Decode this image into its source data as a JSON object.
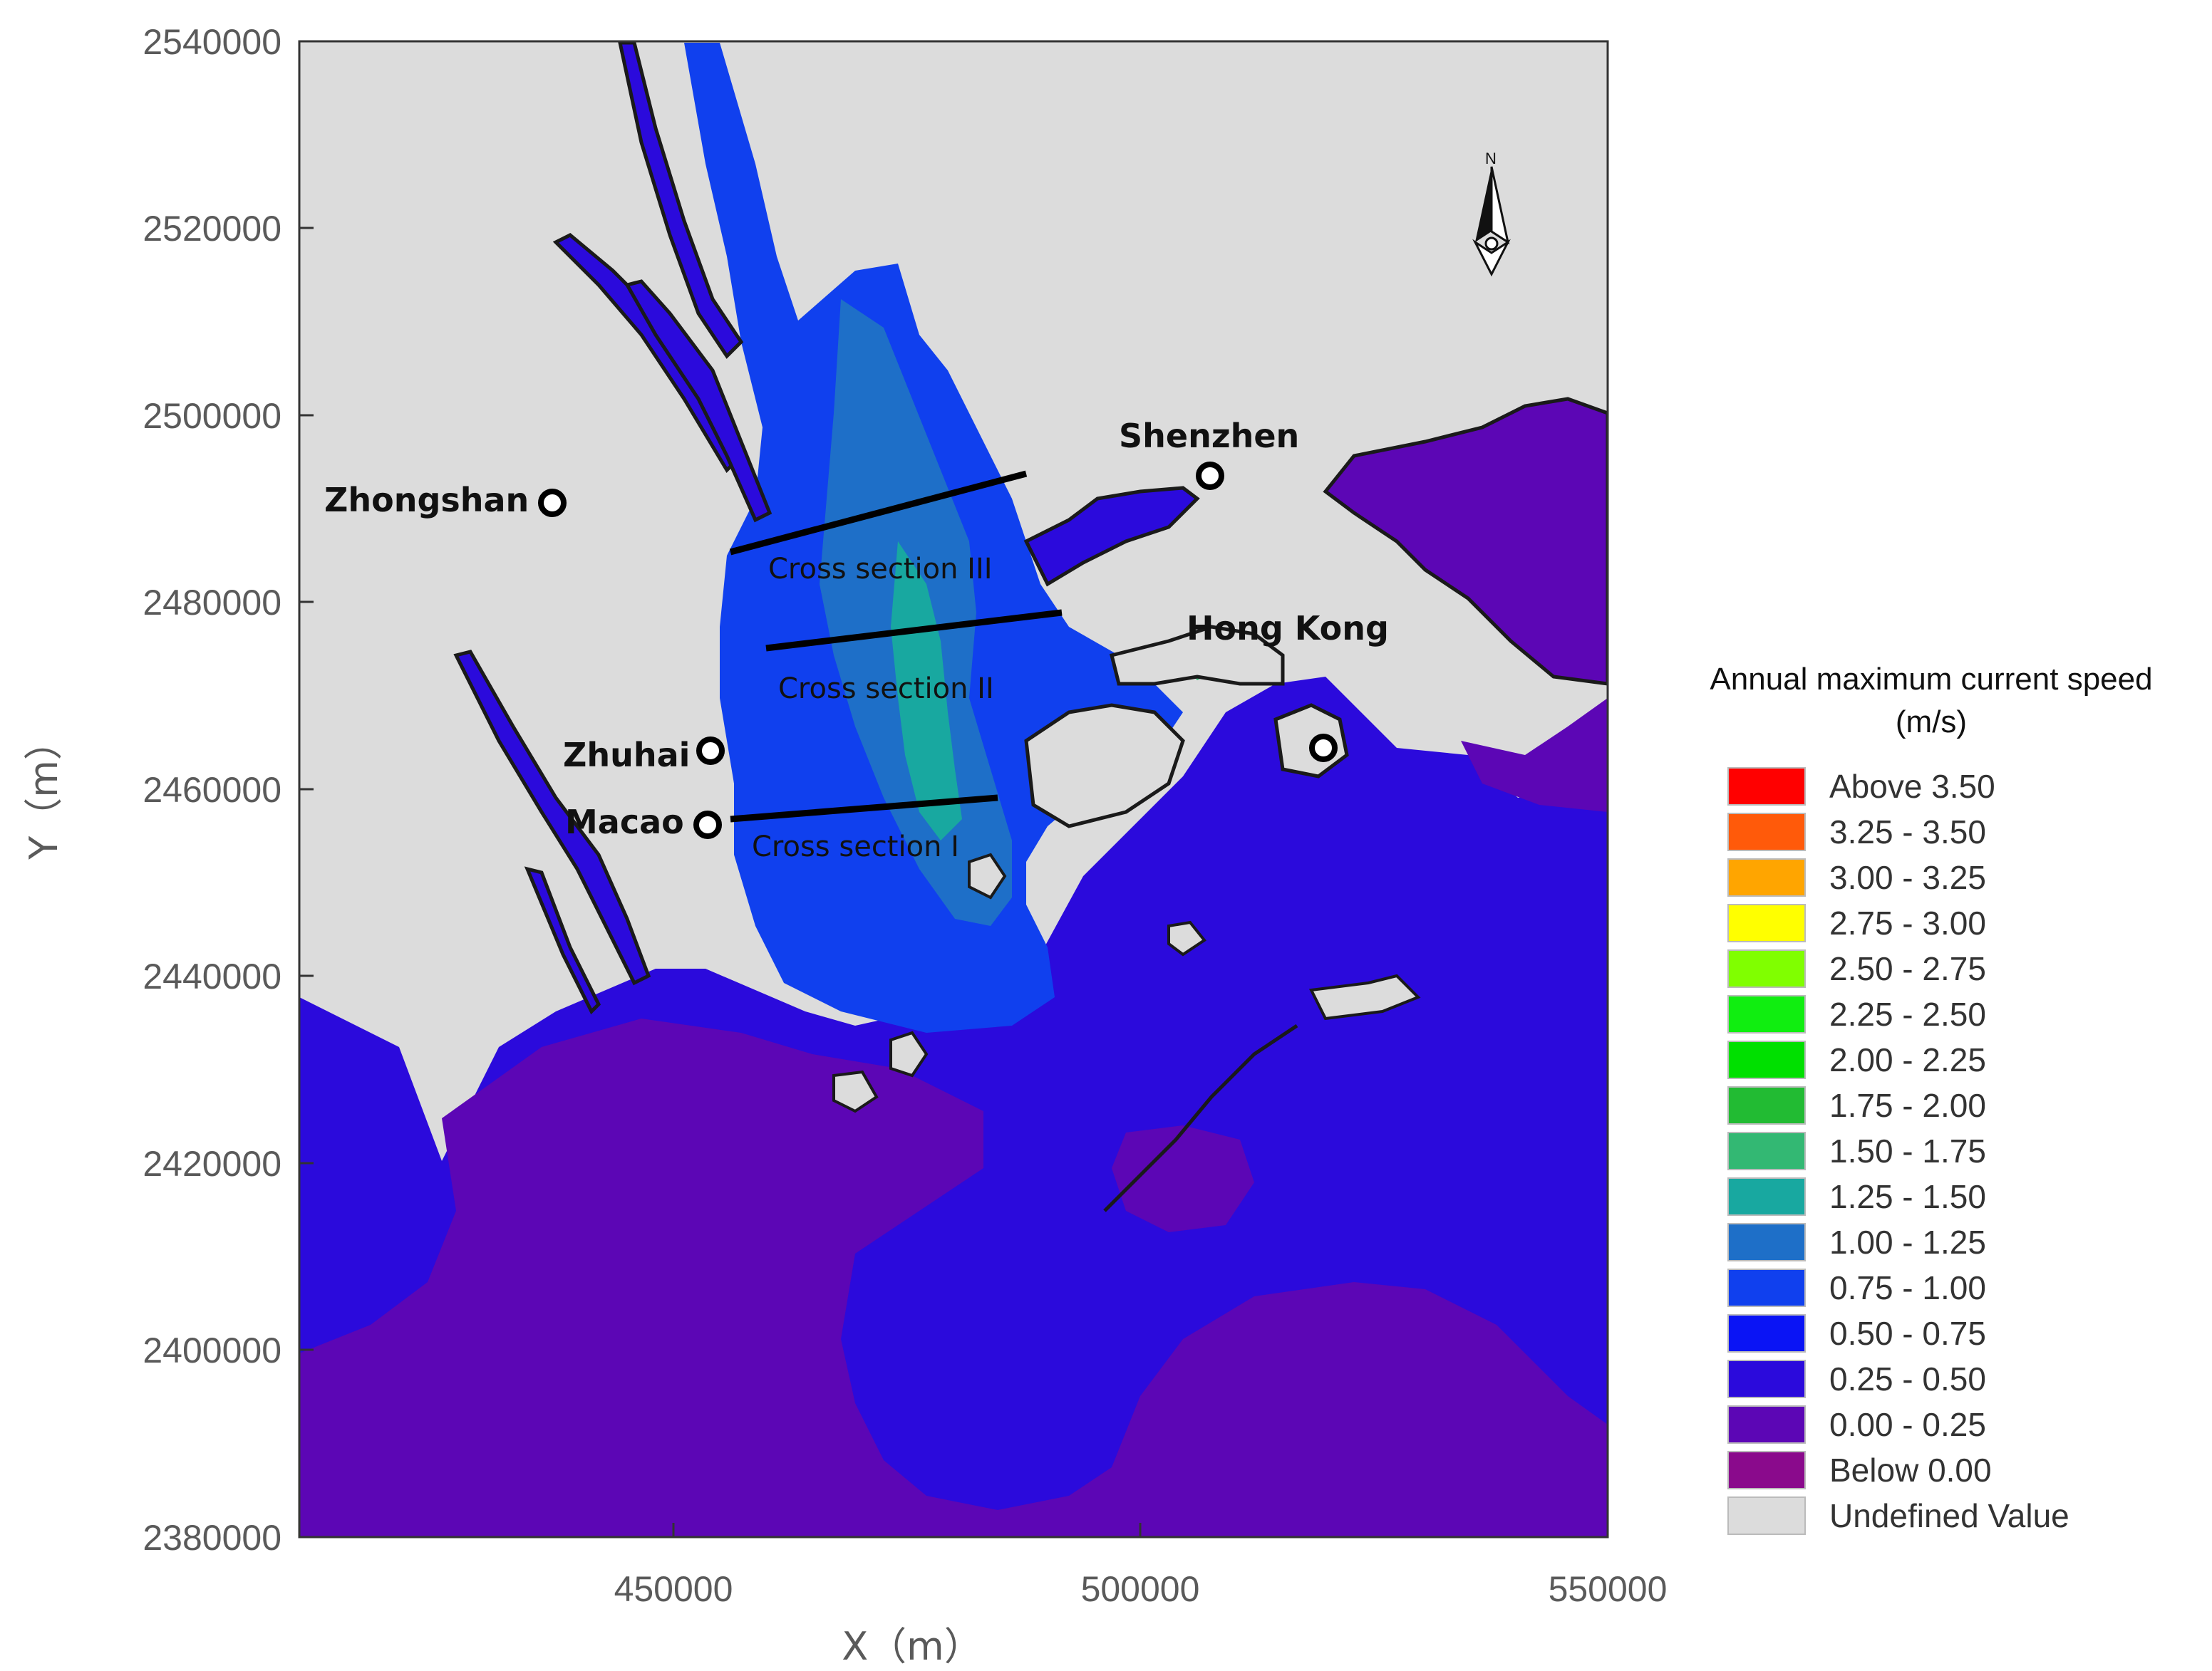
{
  "axes": {
    "x_title": "X（m）",
    "y_title": "Y（m）",
    "x_ticks": [
      "450000",
      "500000",
      "550000"
    ],
    "y_ticks": [
      "2540000",
      "2520000",
      "2500000",
      "2480000",
      "2460000",
      "2440000",
      "2420000",
      "2400000",
      "2380000"
    ]
  },
  "north_arrow": {
    "label": "N",
    "icon": "north-arrow-icon"
  },
  "cities": [
    {
      "name": "Shenzhen"
    },
    {
      "name": "Zhongshan"
    },
    {
      "name": "Hong Kong"
    },
    {
      "name": "Zhuhai"
    },
    {
      "name": "Macao"
    }
  ],
  "cross_sections": [
    {
      "label": "Cross section III"
    },
    {
      "label": "Cross section II"
    },
    {
      "label": "Cross section I"
    }
  ],
  "legend": {
    "title_line1": "Annual maximum current speed",
    "title_line2": "(m/s)",
    "items": [
      {
        "label": "Above 3.50",
        "color": "#ff0000"
      },
      {
        "label": "3.25 - 3.50",
        "color": "#ff5a0a"
      },
      {
        "label": "3.00 - 3.25",
        "color": "#ffa500"
      },
      {
        "label": "2.75 - 3.00",
        "color": "#ffff00"
      },
      {
        "label": "2.50 - 2.75",
        "color": "#80ff00"
      },
      {
        "label": "2.25 - 2.50",
        "color": "#10ee10"
      },
      {
        "label": "2.00 - 2.25",
        "color": "#00e000"
      },
      {
        "label": "1.75 - 2.00",
        "color": "#22bb33"
      },
      {
        "label": "1.50 - 1.75",
        "color": "#33b873"
      },
      {
        "label": "1.25 - 1.50",
        "color": "#18a8a0"
      },
      {
        "label": "1.00 - 1.25",
        "color": "#1e6fc8"
      },
      {
        "label": "0.75 - 1.00",
        "color": "#1040ee"
      },
      {
        "label": "0.50 - 0.75",
        "color": "#0a14f5"
      },
      {
        "label": "0.25 - 0.50",
        "color": "#2b0adc"
      },
      {
        "label": "0.00 - 0.25",
        "color": "#5c06b5"
      },
      {
        "label": "Below 0.00",
        "color": "#8a0a8c"
      },
      {
        "label": "Undefined Value",
        "color": "#dcdcdc"
      }
    ]
  },
  "colors": {
    "land": "#dcdcdc",
    "coast": "#1a1a1a",
    "sea_low": "#5c06b5",
    "sea_mid": "#2b0adc",
    "channel": "#1040ee",
    "channel_fast": "#1e6fc8",
    "channel_faster": "#18a8a0"
  }
}
